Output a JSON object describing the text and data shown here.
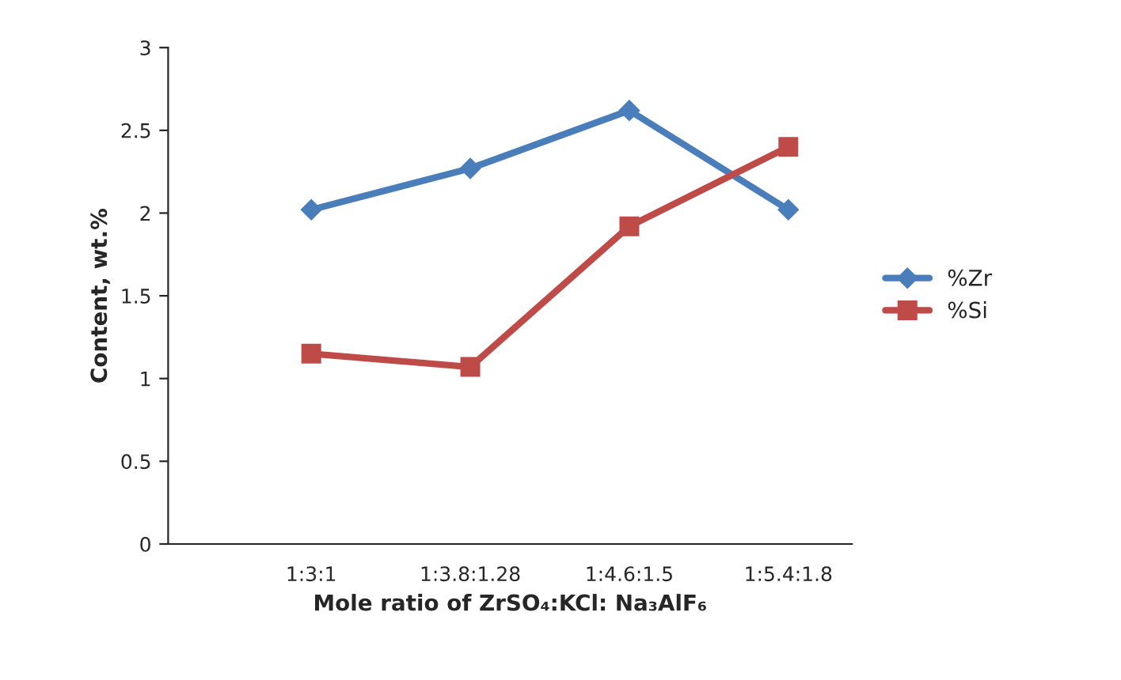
{
  "chart_data": {
    "type": "line",
    "xlabel": "Mole ratio of ZrSO₄:KCl: Na₃AlF₆",
    "ylabel": "Content, wt.%",
    "categories": [
      "1:3:1",
      "1:3.8:1.28",
      "1:4.6:1.5",
      "1:5.4:1.8"
    ],
    "series": [
      {
        "name": "%Zr",
        "color": "#4a7ebb",
        "values": [
          2.02,
          2.27,
          2.62,
          2.02
        ],
        "marker": "diamond"
      },
      {
        "name": "%Si",
        "color": "#be4b48",
        "values": [
          1.15,
          1.07,
          1.92,
          2.4
        ],
        "marker": "square"
      }
    ],
    "ylim": [
      0,
      3
    ],
    "yticks": [
      0,
      0.5,
      1,
      1.5,
      2,
      2.5,
      3
    ],
    "grid": false,
    "legend": "right",
    "line_style": "solid"
  }
}
